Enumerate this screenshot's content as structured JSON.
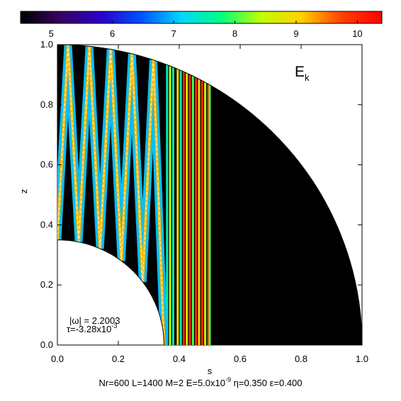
{
  "chart_data": {
    "type": "heatmap",
    "title": "",
    "colorbar": {
      "ticks": [
        "5",
        "6",
        "7",
        "8",
        "9",
        "10"
      ],
      "range": [
        4.5,
        10.4
      ],
      "colors": [
        "#000000",
        "#3a0060",
        "#2a00c8",
        "#0050ff",
        "#00d8ff",
        "#00ff80",
        "#c0ff00",
        "#ffd000",
        "#ff4000",
        "#ff0000"
      ]
    },
    "xlabel": "s",
    "ylabel": "z",
    "xlim": [
      0.0,
      1.0
    ],
    "ylim": [
      0.0,
      1.0
    ],
    "xticks": [
      "0.0",
      "0.2",
      "0.4",
      "0.6",
      "0.8",
      "1.0"
    ],
    "yticks": [
      "0.0",
      "0.2",
      "0.4",
      "0.6",
      "0.8",
      "1.0"
    ],
    "panel_label": {
      "main": "E",
      "sub": "k"
    },
    "inner_radius": 0.35,
    "outer_radius": 1.0,
    "annotations": {
      "omega": "|ω| = 2.2003",
      "tau_main": "τ=-3.28x10",
      "tau_exp": "-3"
    },
    "footer": {
      "p1": "Nr=600 L=1400 M=2 E=5.0x10",
      "e_exp": "-9",
      "p2": " η=0.350 ε=0.400"
    },
    "field": {
      "background_value": 4.5,
      "zigzag_bands": {
        "count": 10,
        "x_range": [
          0.0,
          0.35
        ],
        "core_value": 9.2,
        "edge_value": 7.0
      },
      "vertical_lines": [
        {
          "s": 0.36,
          "value": 7.5
        },
        {
          "s": 0.37,
          "value": 8.5
        },
        {
          "s": 0.38,
          "value": 7.5
        },
        {
          "s": 0.395,
          "value": 9.0
        },
        {
          "s": 0.405,
          "value": 7.5
        },
        {
          "s": 0.415,
          "value": 10.0
        },
        {
          "s": 0.425,
          "value": 8.5
        },
        {
          "s": 0.435,
          "value": 10.0
        },
        {
          "s": 0.445,
          "value": 8.0
        },
        {
          "s": 0.455,
          "value": 10.0
        },
        {
          "s": 0.465,
          "value": 9.0
        },
        {
          "s": 0.475,
          "value": 10.0
        },
        {
          "s": 0.485,
          "value": 8.5
        },
        {
          "s": 0.495,
          "value": 10.0
        },
        {
          "s": 0.5,
          "value": 8.0
        }
      ]
    }
  }
}
